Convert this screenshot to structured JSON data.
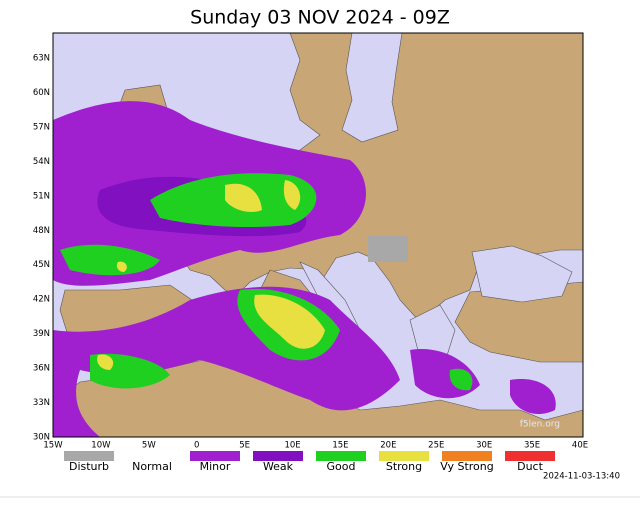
{
  "title": "Sunday 03 NOV 2024 - 09Z",
  "map": {
    "lat_labels": [
      "63N",
      "60N",
      "57N",
      "54N",
      "51N",
      "48N",
      "45N",
      "42N",
      "39N",
      "36N",
      "33N",
      "30N"
    ],
    "lon_labels": [
      "15W",
      "10W",
      "5W",
      "0",
      "5E",
      "10E",
      "15E",
      "20E",
      "25E",
      "30E",
      "35E",
      "40E"
    ],
    "watermark": "f5len.org"
  },
  "legend": {
    "items": [
      {
        "label": "Disturb",
        "color": "#a8a8a8"
      },
      {
        "label": "Normal",
        "color": "#ffffff"
      },
      {
        "label": "Minor",
        "color": "#a020d0"
      },
      {
        "label": "Weak",
        "color": "#8010c0"
      },
      {
        "label": "Good",
        "color": "#20d020"
      },
      {
        "label": "Strong",
        "color": "#e8e040"
      },
      {
        "label": "Vy Strong",
        "color": "#f08020"
      },
      {
        "label": "Duct",
        "color": "#f03030"
      }
    ]
  },
  "timestamp": "2024-11-03-13:40"
}
